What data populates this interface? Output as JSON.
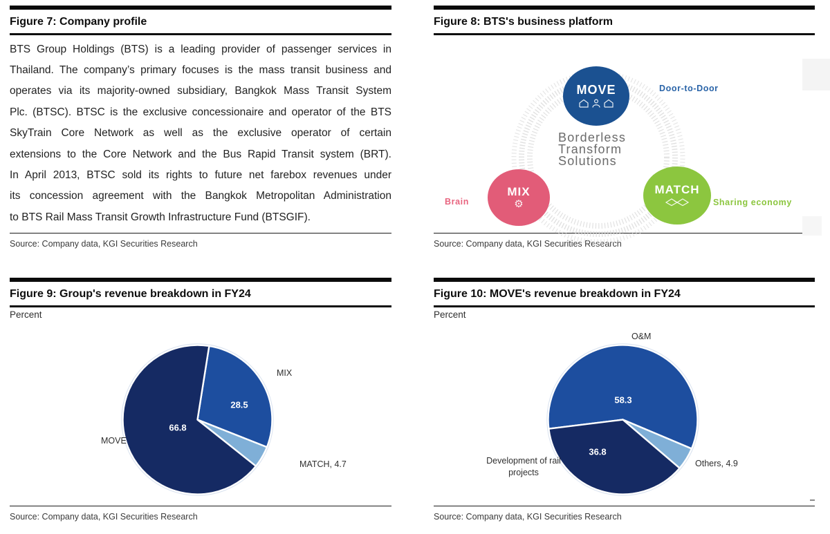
{
  "figures": {
    "fig7": {
      "title": "Figure 7: Company profile",
      "body_lines": [
        "BTS Group Holdings (BTS) is a leading provider of passenger services in",
        "Thailand. The company’s primary focuses is the mass transit business and",
        "operates via its majority-owned subsidiary, Bangkok Mass Transit System",
        "Plc. (BTSC). BTSC is the exclusive concessionaire and operator of the BTS",
        "SkyTrain Core Network as well as the exclusive operator of certain",
        "extensions to the Core Network and the Bus Rapid Transit system (BRT).",
        "In April 2013, BTSC sold its rights to future net farebox revenues under",
        "its concession agreement with the Bangkok Metropolitan Administration",
        "to BTS Rail Mass Transit Growth Infrastructure Fund (BTSGIF)."
      ],
      "source": "Source: Company data, KGI Securities Research"
    },
    "fig8": {
      "title": "Figure 8: BTS's business platform",
      "source": "Source: Company data, KGI Securities Research",
      "diagram": {
        "center_lines": {
          "l1": "Borderless",
          "l2": "Transform",
          "l3": "Solutions"
        },
        "move": {
          "label": "MOVE",
          "tag": "Door-to-Door",
          "color": "#1b5191",
          "tag_color": "#2a64a8"
        },
        "mix": {
          "label": "MIX",
          "tag": "Brain",
          "color": "#e25c78",
          "tag_color": "#e8647f"
        },
        "match": {
          "label": "MATCH",
          "tag": "Sharing economy",
          "color": "#8cc63f",
          "tag_color": "#8cc63f"
        }
      }
    },
    "fig9": {
      "title": "Figure 9: Group's revenue breakdown in FY24",
      "unit": "Percent",
      "source": "Source: Company data, KGI Securities Research",
      "callouts": {
        "mix": "MIX",
        "mix_value": "28.5",
        "move": "MOVE",
        "move_value": "66.8",
        "match": "MATCH, 4.7"
      }
    },
    "fig10": {
      "title": "Figure 10: MOVE's revenue breakdown in FY24",
      "unit": "Percent",
      "source": "Source: Company data, KGI Securities Research",
      "callouts": {
        "om": "O&M",
        "om_value": "58.3",
        "dev_value": "36.8",
        "dev_line1": "Development of rail",
        "dev_line2": "projects",
        "others": "Others, 4.9"
      }
    }
  },
  "chart_data": [
    {
      "type": "pie",
      "title": "Figure 9: Group's revenue breakdown in FY24",
      "unit": "Percent",
      "labels": [
        "MIX",
        "MATCH",
        "MOVE"
      ],
      "values": [
        28.5,
        4.7,
        66.8
      ],
      "colors": [
        "#1d4e9f",
        "#7fafd7",
        "#152a63"
      ],
      "start_angle": 9,
      "legend": "none",
      "separator_color": "#ffffff"
    },
    {
      "type": "pie",
      "title": "Figure 10: MOVE's revenue breakdown in FY24",
      "unit": "Percent",
      "labels": [
        "O&M",
        "Others",
        "Development of rail projects"
      ],
      "values": [
        58.3,
        4.9,
        36.8
      ],
      "colors": [
        "#1d4e9f",
        "#7fafd7",
        "#152a63"
      ],
      "start_angle": 263,
      "legend": "none",
      "separator_color": "#ffffff"
    }
  ]
}
